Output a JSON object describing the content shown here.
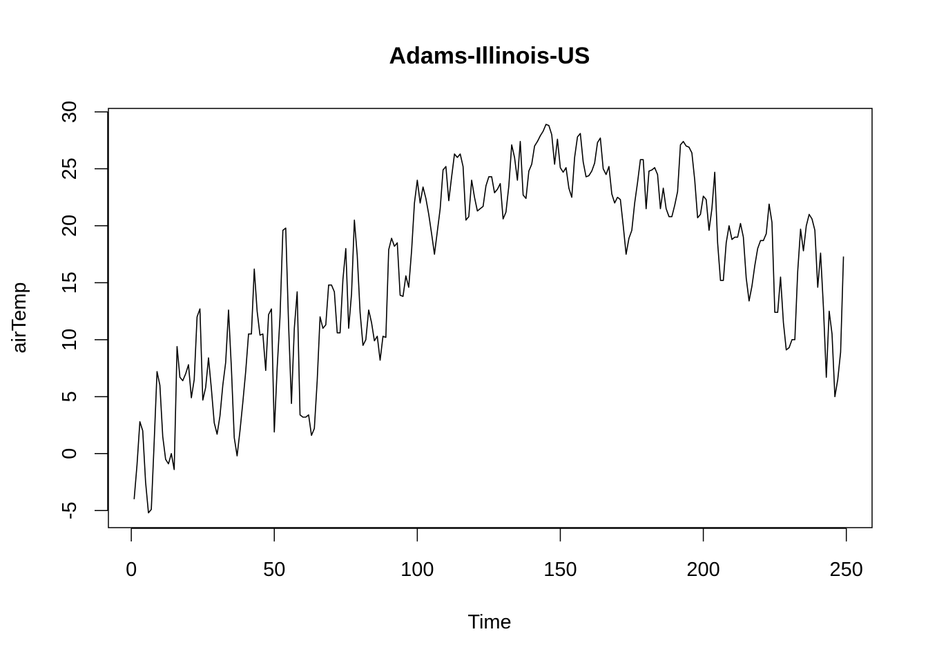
{
  "chart_data": {
    "type": "line",
    "title": "Adams-Illinois-US",
    "xlabel": "Time",
    "ylabel": "airTemp",
    "xlim": [
      -8,
      259
    ],
    "ylim": [
      -6.5,
      30.3
    ],
    "x_ticks": [
      0,
      50,
      100,
      150,
      200,
      250
    ],
    "y_ticks": [
      -5,
      0,
      5,
      10,
      15,
      20,
      25,
      30
    ],
    "grid": false,
    "line_color": "#000000",
    "series": [
      {
        "values": [
          -4.0,
          -1.0,
          2.8,
          2.0,
          -2.5,
          -5.2,
          -4.9,
          1.0,
          7.2,
          6.0,
          1.5,
          -0.5,
          -0.9,
          0.0,
          -1.4,
          9.4,
          6.7,
          6.4,
          7.0,
          7.8,
          4.9,
          6.5,
          12.0,
          12.7,
          4.7,
          5.8,
          8.4,
          5.7,
          2.7,
          1.7,
          3.3,
          6.0,
          8.0,
          12.6,
          7.5,
          1.4,
          -0.2,
          2.0,
          4.5,
          7.2,
          10.5,
          10.5,
          16.2,
          12.5,
          10.4,
          10.5,
          7.3,
          12.2,
          12.7,
          1.9,
          7.5,
          12.0,
          19.6,
          19.8,
          11.3,
          4.4,
          11.0,
          14.2,
          3.4,
          3.2,
          3.2,
          3.4,
          1.6,
          2.2,
          6.4,
          12.0,
          11.0,
          11.3,
          14.8,
          14.8,
          14.2,
          10.6,
          10.6,
          15.3,
          18.0,
          11.0,
          14.0,
          20.5,
          17.4,
          12.4,
          9.5,
          10.0,
          12.6,
          11.5,
          9.9,
          10.3,
          8.2,
          10.3,
          10.2,
          17.9,
          18.9,
          18.2,
          18.5,
          13.9,
          13.8,
          15.6,
          14.6,
          17.8,
          22.0,
          24.0,
          22.0,
          23.4,
          22.4,
          21.0,
          19.3,
          17.5,
          19.5,
          21.5,
          24.9,
          25.2,
          22.2,
          24.3,
          26.3,
          26.0,
          26.3,
          25.2,
          20.5,
          20.8,
          24.0,
          22.5,
          21.3,
          21.5,
          21.7,
          23.5,
          24.3,
          24.3,
          22.9,
          23.2,
          23.7,
          20.6,
          21.2,
          23.5,
          27.1,
          26.0,
          24.0,
          27.4,
          22.7,
          22.4,
          24.8,
          25.4,
          27.0,
          27.4,
          27.9,
          28.3,
          28.9,
          28.8,
          28.0,
          25.4,
          27.6,
          25.1,
          24.7,
          25.1,
          23.3,
          22.5,
          26.0,
          27.8,
          28.1,
          25.6,
          24.3,
          24.4,
          24.8,
          25.5,
          27.3,
          27.7,
          25.0,
          24.5,
          25.2,
          22.8,
          22.0,
          22.5,
          22.3,
          20.0,
          17.5,
          18.9,
          19.6,
          22.0,
          23.8,
          25.8,
          25.8,
          21.5,
          24.8,
          24.9,
          25.1,
          24.5,
          21.5,
          23.3,
          21.5,
          20.8,
          20.8,
          21.8,
          23.0,
          27.1,
          27.4,
          27.0,
          26.9,
          26.4,
          24.0,
          20.7,
          21.0,
          22.6,
          22.3,
          19.6,
          21.5,
          24.7,
          18.5,
          15.2,
          15.2,
          18.5,
          20.0,
          18.8,
          19.0,
          19.0,
          20.2,
          19.0,
          15.4,
          13.4,
          14.7,
          16.5,
          18.0,
          18.7,
          18.7,
          19.3,
          21.9,
          20.3,
          12.4,
          12.4,
          15.5,
          11.5,
          9.1,
          9.3,
          10.0,
          10.0,
          16.0,
          19.7,
          17.8,
          20.0,
          21.0,
          20.6,
          19.6,
          14.6,
          17.6,
          12.8,
          6.7,
          12.5,
          10.5,
          5.0,
          6.5,
          8.9,
          17.3
        ]
      }
    ]
  }
}
